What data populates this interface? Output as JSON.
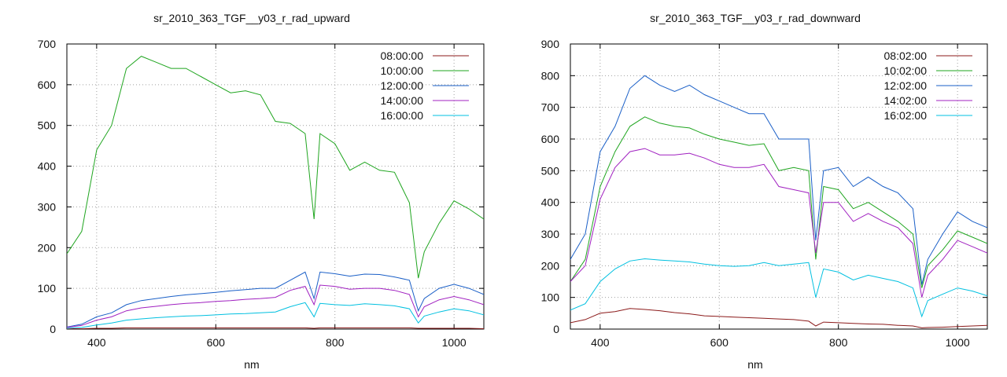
{
  "chart_data": [
    {
      "type": "line",
      "title": "sr_2010_363_TGF__y03_r_rad_upward",
      "xlabel": "nm",
      "ylabel": "",
      "xlim": [
        350,
        1050
      ],
      "ylim": [
        0,
        700
      ],
      "xticks": [
        400,
        600,
        800,
        1000
      ],
      "yticks": [
        0,
        100,
        200,
        300,
        400,
        500,
        600,
        700
      ],
      "grid": true,
      "legend_position": "top-right",
      "x": [
        350,
        375,
        400,
        425,
        450,
        475,
        500,
        525,
        550,
        575,
        600,
        625,
        650,
        675,
        700,
        725,
        750,
        765,
        775,
        800,
        825,
        850,
        875,
        900,
        925,
        940,
        950,
        975,
        1000,
        1025,
        1050
      ],
      "series": [
        {
          "name": "08:00:00",
          "color": "#8b1a1a",
          "values": [
            1,
            1,
            2,
            2,
            3,
            3,
            3,
            3,
            3,
            3,
            3,
            3,
            3,
            3,
            3,
            3,
            3,
            2,
            3,
            3,
            3,
            3,
            3,
            3,
            3,
            2,
            2,
            2,
            2,
            2,
            1
          ]
        },
        {
          "name": "10:00:00",
          "color": "#1fa51f",
          "values": [
            185,
            240,
            440,
            500,
            640,
            670,
            655,
            640,
            640,
            620,
            600,
            580,
            585,
            575,
            510,
            505,
            480,
            270,
            480,
            455,
            390,
            410,
            390,
            385,
            310,
            125,
            190,
            260,
            315,
            295,
            270
          ]
        },
        {
          "name": "12:00:00",
          "color": "#1a5fc7",
          "values": [
            5,
            12,
            30,
            40,
            60,
            70,
            75,
            80,
            84,
            87,
            90,
            94,
            97,
            100,
            100,
            120,
            140,
            75,
            140,
            136,
            130,
            135,
            134,
            128,
            120,
            45,
            75,
            100,
            110,
            100,
            85
          ]
        },
        {
          "name": "14:00:00",
          "color": "#a020c0",
          "values": [
            4,
            9,
            22,
            30,
            45,
            52,
            56,
            60,
            63,
            65,
            68,
            70,
            73,
            75,
            78,
            95,
            105,
            60,
            108,
            105,
            98,
            100,
            100,
            95,
            85,
            30,
            55,
            72,
            80,
            72,
            60
          ]
        },
        {
          "name": "16:00:00",
          "color": "#00c0e0",
          "values": [
            2,
            4,
            10,
            15,
            22,
            25,
            28,
            30,
            32,
            33,
            35,
            37,
            38,
            40,
            42,
            55,
            65,
            30,
            63,
            60,
            58,
            62,
            60,
            57,
            50,
            15,
            32,
            42,
            50,
            45,
            35
          ]
        }
      ]
    },
    {
      "type": "line",
      "title": "sr_2010_363_TGF__y03_r_rad_downward",
      "xlabel": "nm",
      "ylabel": "",
      "xlim": [
        350,
        1050
      ],
      "ylim": [
        0,
        900
      ],
      "xticks": [
        400,
        600,
        800,
        1000
      ],
      "yticks": [
        0,
        100,
        200,
        300,
        400,
        500,
        600,
        700,
        800,
        900
      ],
      "grid": true,
      "legend_position": "top-right",
      "x": [
        350,
        375,
        400,
        425,
        450,
        475,
        500,
        525,
        550,
        575,
        600,
        625,
        650,
        675,
        700,
        725,
        750,
        762,
        775,
        800,
        825,
        850,
        875,
        900,
        925,
        940,
        950,
        975,
        1000,
        1025,
        1050
      ],
      "series": [
        {
          "name": "08:02:00",
          "color": "#8b1a1a",
          "values": [
            20,
            30,
            50,
            55,
            65,
            62,
            58,
            52,
            48,
            42,
            40,
            38,
            36,
            34,
            32,
            30,
            25,
            10,
            22,
            20,
            18,
            16,
            15,
            12,
            10,
            4,
            5,
            6,
            8,
            10,
            12
          ]
        },
        {
          "name": "10:02:00",
          "color": "#1fa51f",
          "values": [
            150,
            220,
            450,
            560,
            640,
            670,
            650,
            640,
            635,
            615,
            600,
            590,
            580,
            585,
            500,
            510,
            500,
            220,
            450,
            440,
            380,
            400,
            370,
            340,
            300,
            130,
            200,
            250,
            310,
            290,
            270
          ]
        },
        {
          "name": "12:02:00",
          "color": "#1a5fc7",
          "values": [
            220,
            300,
            560,
            640,
            760,
            800,
            770,
            750,
            770,
            740,
            720,
            700,
            680,
            680,
            600,
            600,
            600,
            280,
            500,
            510,
            450,
            480,
            450,
            430,
            380,
            140,
            220,
            300,
            370,
            340,
            320
          ]
        },
        {
          "name": "14:02:00",
          "color": "#a020c0",
          "values": [
            150,
            200,
            410,
            510,
            560,
            570,
            550,
            550,
            555,
            540,
            520,
            510,
            510,
            520,
            450,
            440,
            430,
            240,
            400,
            400,
            340,
            365,
            340,
            320,
            270,
            100,
            170,
            220,
            280,
            260,
            240
          ]
        },
        {
          "name": "16:02:00",
          "color": "#00c0e0",
          "values": [
            60,
            80,
            150,
            190,
            215,
            222,
            218,
            215,
            212,
            205,
            200,
            198,
            200,
            210,
            200,
            205,
            210,
            100,
            190,
            180,
            155,
            170,
            160,
            150,
            130,
            40,
            90,
            110,
            130,
            120,
            105
          ]
        }
      ]
    }
  ]
}
